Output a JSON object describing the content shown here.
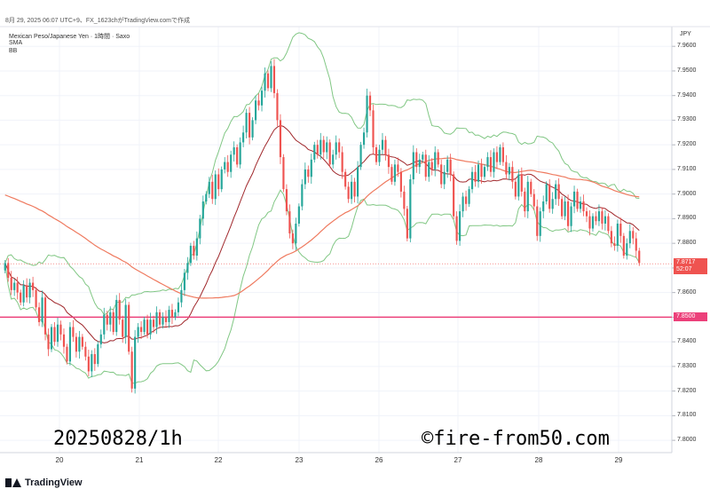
{
  "header": {
    "meta": "8月 29, 2025 06:07 UTC+9、FX_1623chがTradingView.comで作成",
    "symbol": "Mexican Peso/Japanese Yen · 1時間 · Saxo",
    "indicator1": "SMA",
    "indicator2": "BB"
  },
  "axis": {
    "currency": "JPY"
  },
  "overlay": {
    "left": "20250828/1h",
    "right": "©fire-from50.com"
  },
  "brand": {
    "name": "TradingView"
  },
  "badges": {
    "last_price": "7.8717",
    "countdown": "52:07",
    "level": "7.8500"
  },
  "chart_data": {
    "type": "candlestick",
    "ylim": [
      7.795,
      7.968
    ],
    "y_ticks": [
      "7.9600",
      "7.9500",
      "7.9400",
      "7.9300",
      "7.9200",
      "7.9100",
      "7.9000",
      "7.8900",
      "7.8800",
      "7.8700",
      "7.8600",
      "7.8500",
      "7.8400",
      "7.8300",
      "7.8200",
      "7.8100",
      "7.8000"
    ],
    "x_ticks": [
      "20",
      "21",
      "22",
      "23",
      "26",
      "27",
      "28",
      "29"
    ],
    "horizontal_line": 7.85,
    "last_price": 7.8717,
    "colors": {
      "up": "#26a69a",
      "down": "#ef5350",
      "sma_short": "#a0282c",
      "sma_long": "#ef7a5f",
      "bb": "#81c784",
      "level": "#ec407a"
    },
    "closes": [
      7.872,
      7.866,
      7.861,
      7.864,
      7.86,
      7.856,
      7.863,
      7.858,
      7.864,
      7.861,
      7.854,
      7.848,
      7.858,
      7.843,
      7.837,
      7.846,
      7.84,
      7.847,
      7.843,
      7.838,
      7.832,
      7.846,
      7.842,
      7.836,
      7.842,
      7.838,
      7.834,
      7.828,
      7.835,
      7.831,
      7.839,
      7.843,
      7.851,
      7.847,
      7.852,
      7.844,
      7.857,
      7.849,
      7.842,
      7.855,
      7.836,
      7.821,
      7.842,
      7.846,
      7.844,
      7.849,
      7.843,
      7.849,
      7.846,
      7.852,
      7.847,
      7.85,
      7.848,
      7.853,
      7.85,
      7.852,
      7.856,
      7.861,
      7.868,
      7.872,
      7.879,
      7.875,
      7.882,
      7.89,
      7.897,
      7.9,
      7.905,
      7.898,
      7.908,
      7.902,
      7.91,
      7.913,
      7.909,
      7.916,
      7.919,
      7.912,
      7.921,
      7.925,
      7.933,
      7.923,
      7.93,
      7.938,
      7.936,
      7.942,
      7.949,
      7.943,
      7.952,
      7.941,
      7.93,
      7.915,
      7.902,
      7.893,
      7.884,
      7.88,
      7.888,
      7.895,
      7.904,
      7.91,
      7.907,
      7.914,
      7.92,
      7.916,
      7.922,
      7.917,
      7.921,
      7.912,
      7.916,
      7.921,
      7.917,
      7.909,
      7.903,
      7.898,
      7.905,
      7.899,
      7.911,
      7.92,
      7.925,
      7.94,
      7.934,
      7.919,
      7.913,
      7.918,
      7.922,
      7.916,
      7.911,
      7.905,
      7.912,
      7.909,
      7.901,
      7.894,
      7.882,
      7.906,
      7.917,
      7.911,
      7.914,
      7.916,
      7.907,
      7.913,
      7.91,
      7.917,
      7.912,
      7.904,
      7.909,
      7.914,
      7.908,
      7.891,
      7.881,
      7.893,
      7.899,
      7.896,
      7.902,
      7.909,
      7.905,
      7.912,
      7.907,
      7.911,
      7.915,
      7.909,
      7.917,
      7.913,
      7.919,
      7.913,
      7.908,
      7.911,
      7.905,
      7.899,
      7.908,
      7.901,
      7.893,
      7.905,
      7.9,
      7.895,
      7.883,
      7.893,
      7.897,
      7.904,
      7.894,
      7.898,
      7.904,
      7.898,
      7.891,
      7.897,
      7.887,
      7.895,
      7.901,
      7.894,
      7.897,
      7.893,
      7.891,
      7.886,
      7.891,
      7.889,
      7.893,
      7.888,
      7.891,
      7.885,
      7.88,
      7.879,
      7.888,
      7.883,
      7.875,
      7.88,
      7.885,
      7.882,
      7.877,
      7.872
    ]
  }
}
